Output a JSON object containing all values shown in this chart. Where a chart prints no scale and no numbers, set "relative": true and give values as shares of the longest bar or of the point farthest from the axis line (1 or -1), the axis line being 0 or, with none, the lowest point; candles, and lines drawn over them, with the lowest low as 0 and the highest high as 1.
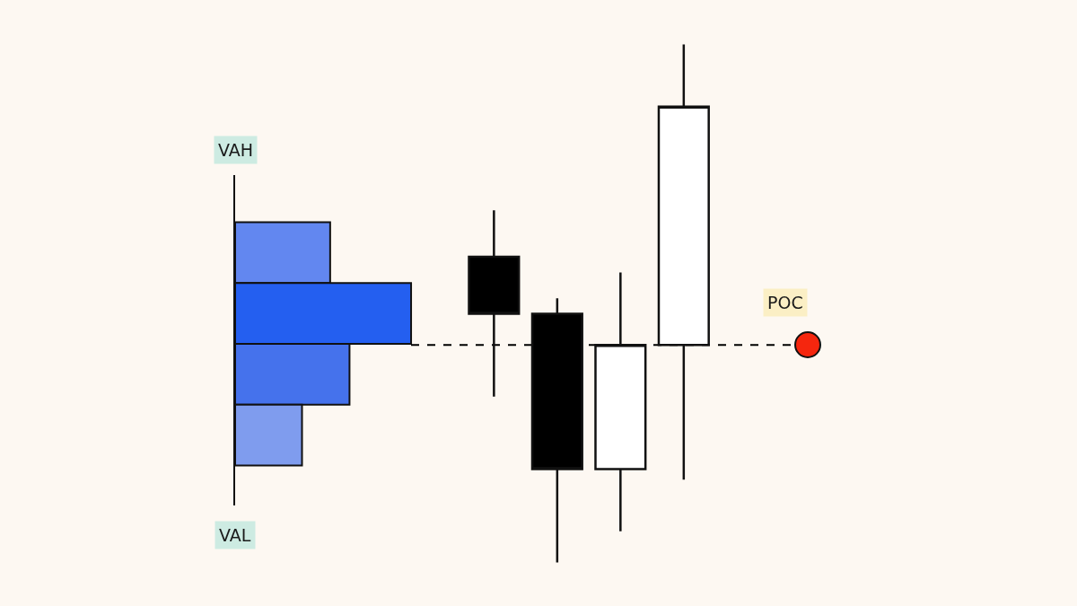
{
  "chart_data": [
    {
      "type": "bar",
      "orientation": "horizontal",
      "relative": true,
      "categories": [
        null,
        null,
        null,
        null
      ],
      "values": [
        0.54,
        1,
        0.65,
        0.38
      ],
      "colors": [
        "#6287f0",
        "#245ff0",
        "#4572ec",
        "#7f9cee"
      ],
      "annotations": [
        "VAH",
        "VAL"
      ]
    },
    {
      "type": "candlestick",
      "relative": true,
      "categories": [
        null,
        null,
        null,
        null
      ],
      "ohlc": [
        [
          0.59,
          0.68,
          0.32,
          0.48
        ],
        [
          0.48,
          0.51,
          0,
          0.18
        ],
        [
          0.18,
          0.56,
          0.06,
          0.42
        ],
        [
          0.42,
          1,
          0.16,
          0.88
        ]
      ],
      "colors": [
        "#000000",
        "#000000",
        "#ffffff",
        "#ffffff"
      ],
      "ref_lines": [
        {
          "axis": "y",
          "value": 0.42,
          "label": "POC",
          "line_style": "dashed",
          "color": "#000000"
        }
      ]
    }
  ]
}
